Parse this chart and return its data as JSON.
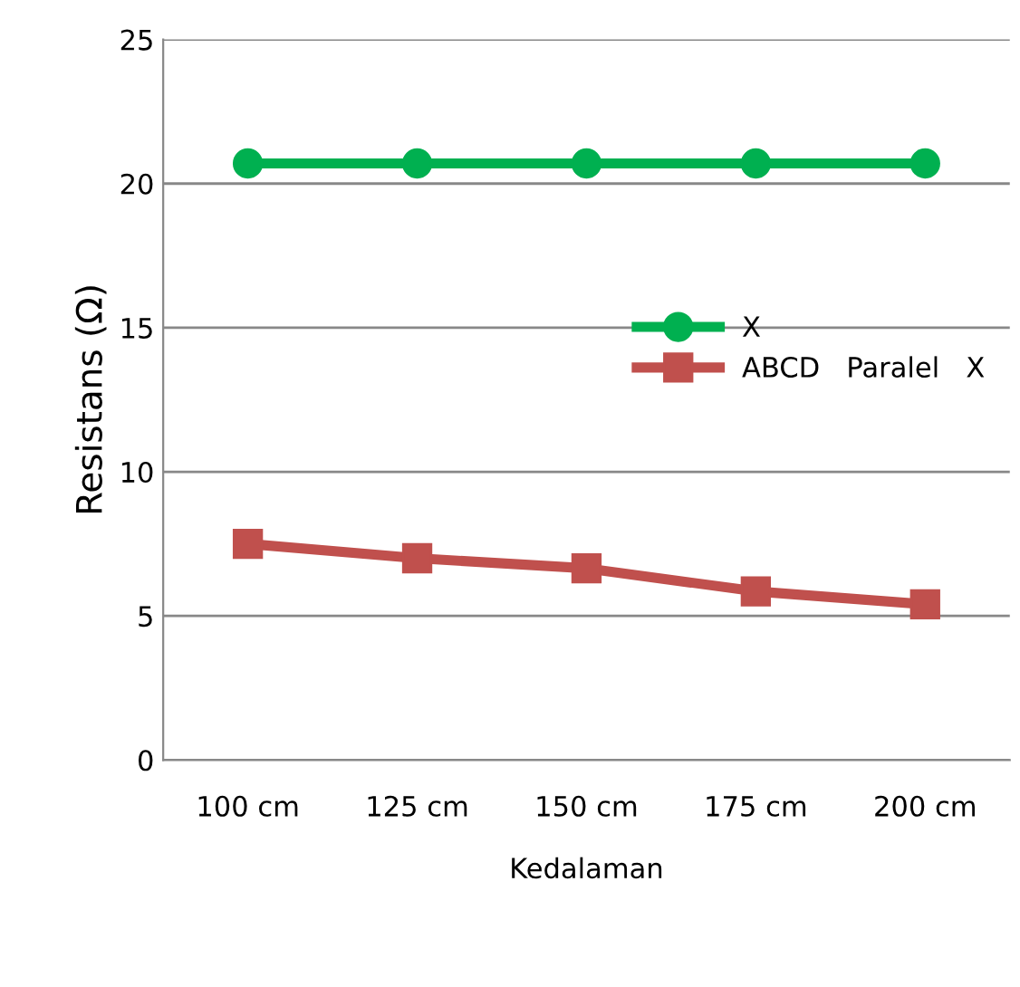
{
  "chart_data": {
    "type": "line",
    "xlabel": "Kedalaman",
    "ylabel": "Resistans (Ω)",
    "categories": [
      "100 cm",
      "125 cm",
      "150 cm",
      "175 cm",
      "200 cm"
    ],
    "series": [
      {
        "name": "X",
        "color": "#00b050",
        "marker": "circle",
        "values": [
          20.7,
          20.7,
          20.7,
          20.7,
          20.7
        ]
      },
      {
        "name": "ABCD   Paralel   X",
        "color": "#c0504d",
        "marker": "square",
        "values": [
          7.5,
          7.0,
          6.65,
          5.85,
          5.4
        ]
      }
    ],
    "ylim": [
      0,
      25
    ],
    "yticks": [
      0,
      5,
      10,
      15,
      20,
      25
    ],
    "grid": "y",
    "legend": "right"
  }
}
